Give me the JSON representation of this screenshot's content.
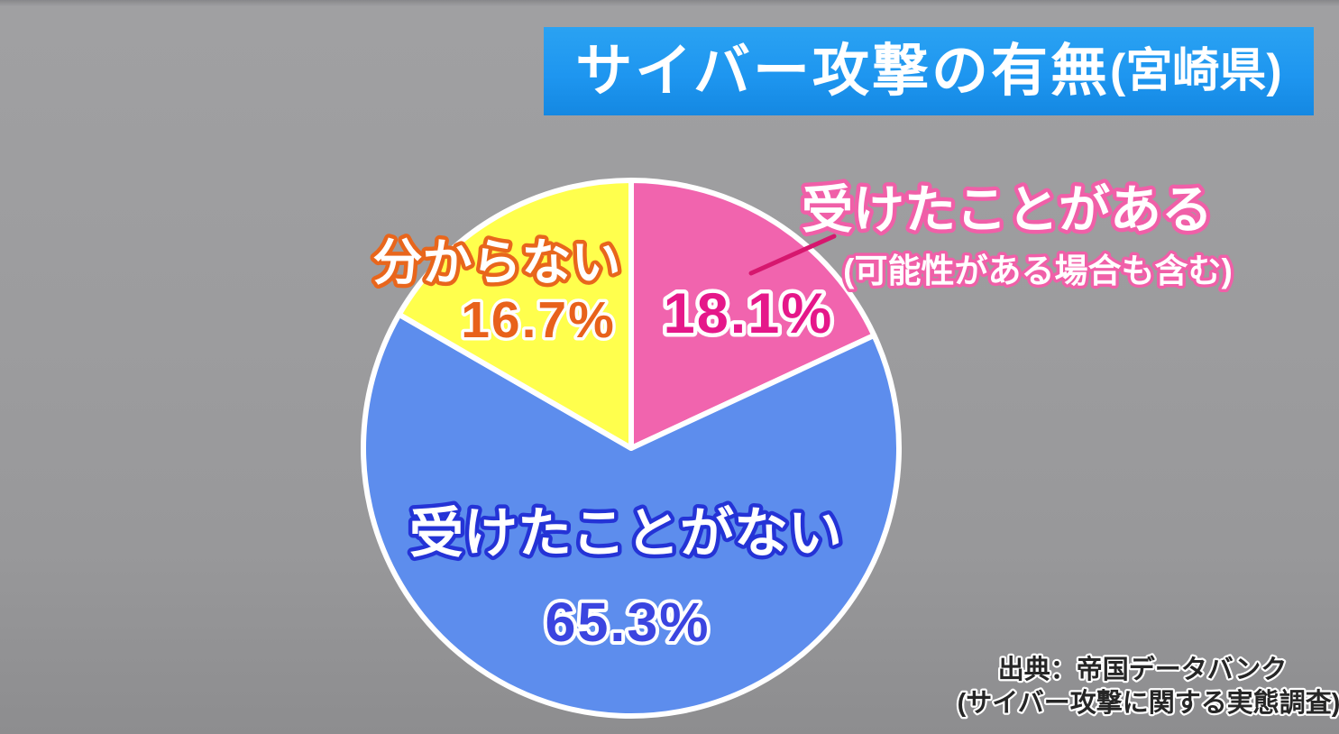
{
  "title": {
    "main": "サイバー攻撃の有無",
    "suffix": "(宮崎県)"
  },
  "chart_data": {
    "type": "pie",
    "title": "サイバー攻撃の有無(宮崎県)",
    "start_angle": "12時位置から時計回り",
    "slices": [
      {
        "id": "received",
        "label": "受けたことがある",
        "sublabel": "(可能性がある場合も含む)",
        "value": 18.1,
        "value_label": "18.1%",
        "color": "#f164ae"
      },
      {
        "id": "not-received",
        "label": "受けたことがない",
        "value": 65.3,
        "value_label": "65.3%",
        "color": "#5d8ded"
      },
      {
        "id": "unknown",
        "label": "分からない",
        "value": 16.7,
        "value_label": "16.7%",
        "color": "#ffff4d"
      }
    ],
    "legend": "ラベルは各扇形の上または横に直接表示"
  },
  "source": {
    "line1": "出典：帝国データバンク",
    "line2": "(サイバー攻撃に関する実態調査)"
  },
  "colors": {
    "background": "#9c9c9e",
    "banner_blue": "#1e96f0",
    "slice_pink": "#f164ae",
    "slice_blue": "#5d8ded",
    "slice_yellow": "#ffff4d",
    "accent_deep_pink": "#e5188a",
    "accent_orange": "#e8611b",
    "accent_royal_blue": "#3b45e0",
    "callout_pink": "#d6176e",
    "title_text": "#ffffff",
    "source_text": "#262626"
  }
}
